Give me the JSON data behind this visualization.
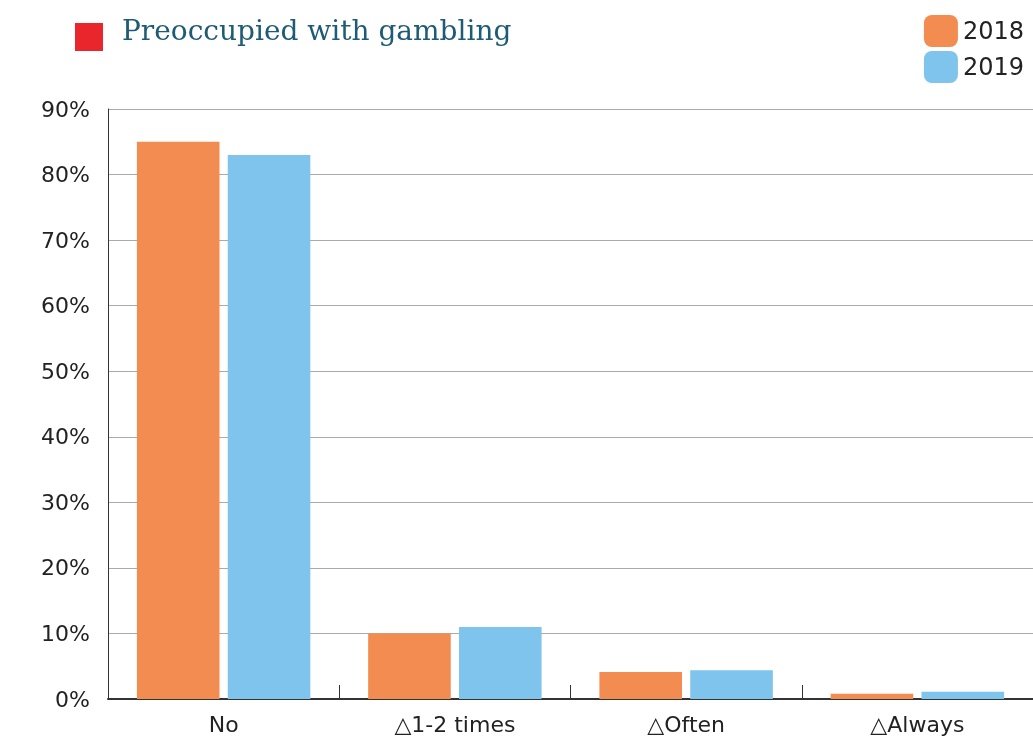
{
  "chart_data": {
    "type": "bar",
    "title": "Preoccupied with gambling",
    "categories": [
      "No",
      "△1-2 times",
      "△Often",
      "△Always"
    ],
    "series": [
      {
        "name": "2018",
        "color": "#f28c50",
        "values": [
          85,
          10,
          4.1,
          0.8
        ]
      },
      {
        "name": "2019",
        "color": "#7fc4ec",
        "values": [
          83,
          11,
          4.4,
          1.1
        ]
      }
    ],
    "ylim": [
      0,
      90
    ],
    "yticks": [
      {
        "value": 0,
        "label": "0%"
      },
      {
        "value": 10,
        "label": "10%"
      },
      {
        "value": 20,
        "label": "20%"
      },
      {
        "value": 30,
        "label": "30%"
      },
      {
        "value": 40,
        "label": "40%"
      },
      {
        "value": 50,
        "label": "50%"
      },
      {
        "value": 60,
        "label": "60%"
      },
      {
        "value": 70,
        "label": "70%"
      },
      {
        "value": 80,
        "label": "80%"
      },
      {
        "value": 90,
        "label": "90%"
      }
    ],
    "grid": "y",
    "legend": "top right"
  }
}
